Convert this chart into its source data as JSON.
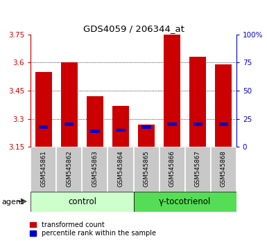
{
  "title": "GDS4059 / 206344_at",
  "samples": [
    "GSM545861",
    "GSM545862",
    "GSM545863",
    "GSM545864",
    "GSM545865",
    "GSM545866",
    "GSM545867",
    "GSM545868"
  ],
  "red_values": [
    3.55,
    3.6,
    3.42,
    3.37,
    3.27,
    3.75,
    3.63,
    3.59
  ],
  "blue_percentiles": [
    18,
    20,
    14,
    15,
    18,
    20,
    20,
    20
  ],
  "y_min": 3.15,
  "y_max": 3.75,
  "y_ticks_red": [
    3.15,
    3.3,
    3.45,
    3.6,
    3.75
  ],
  "y_ticks_blue": [
    0,
    25,
    50,
    75,
    100
  ],
  "bar_width": 0.65,
  "red_color": "#cc0000",
  "blue_color": "#0000cc",
  "control_color": "#ccffcc",
  "treatment_color": "#55dd55",
  "control_label": "control",
  "treatment_label": "γ-tocotrienol",
  "agent_label": "agent",
  "legend_red": "transformed count",
  "legend_blue": "percentile rank within the sample",
  "tick_bg_color": "#c8c8c8",
  "bg_color": "#ffffff"
}
